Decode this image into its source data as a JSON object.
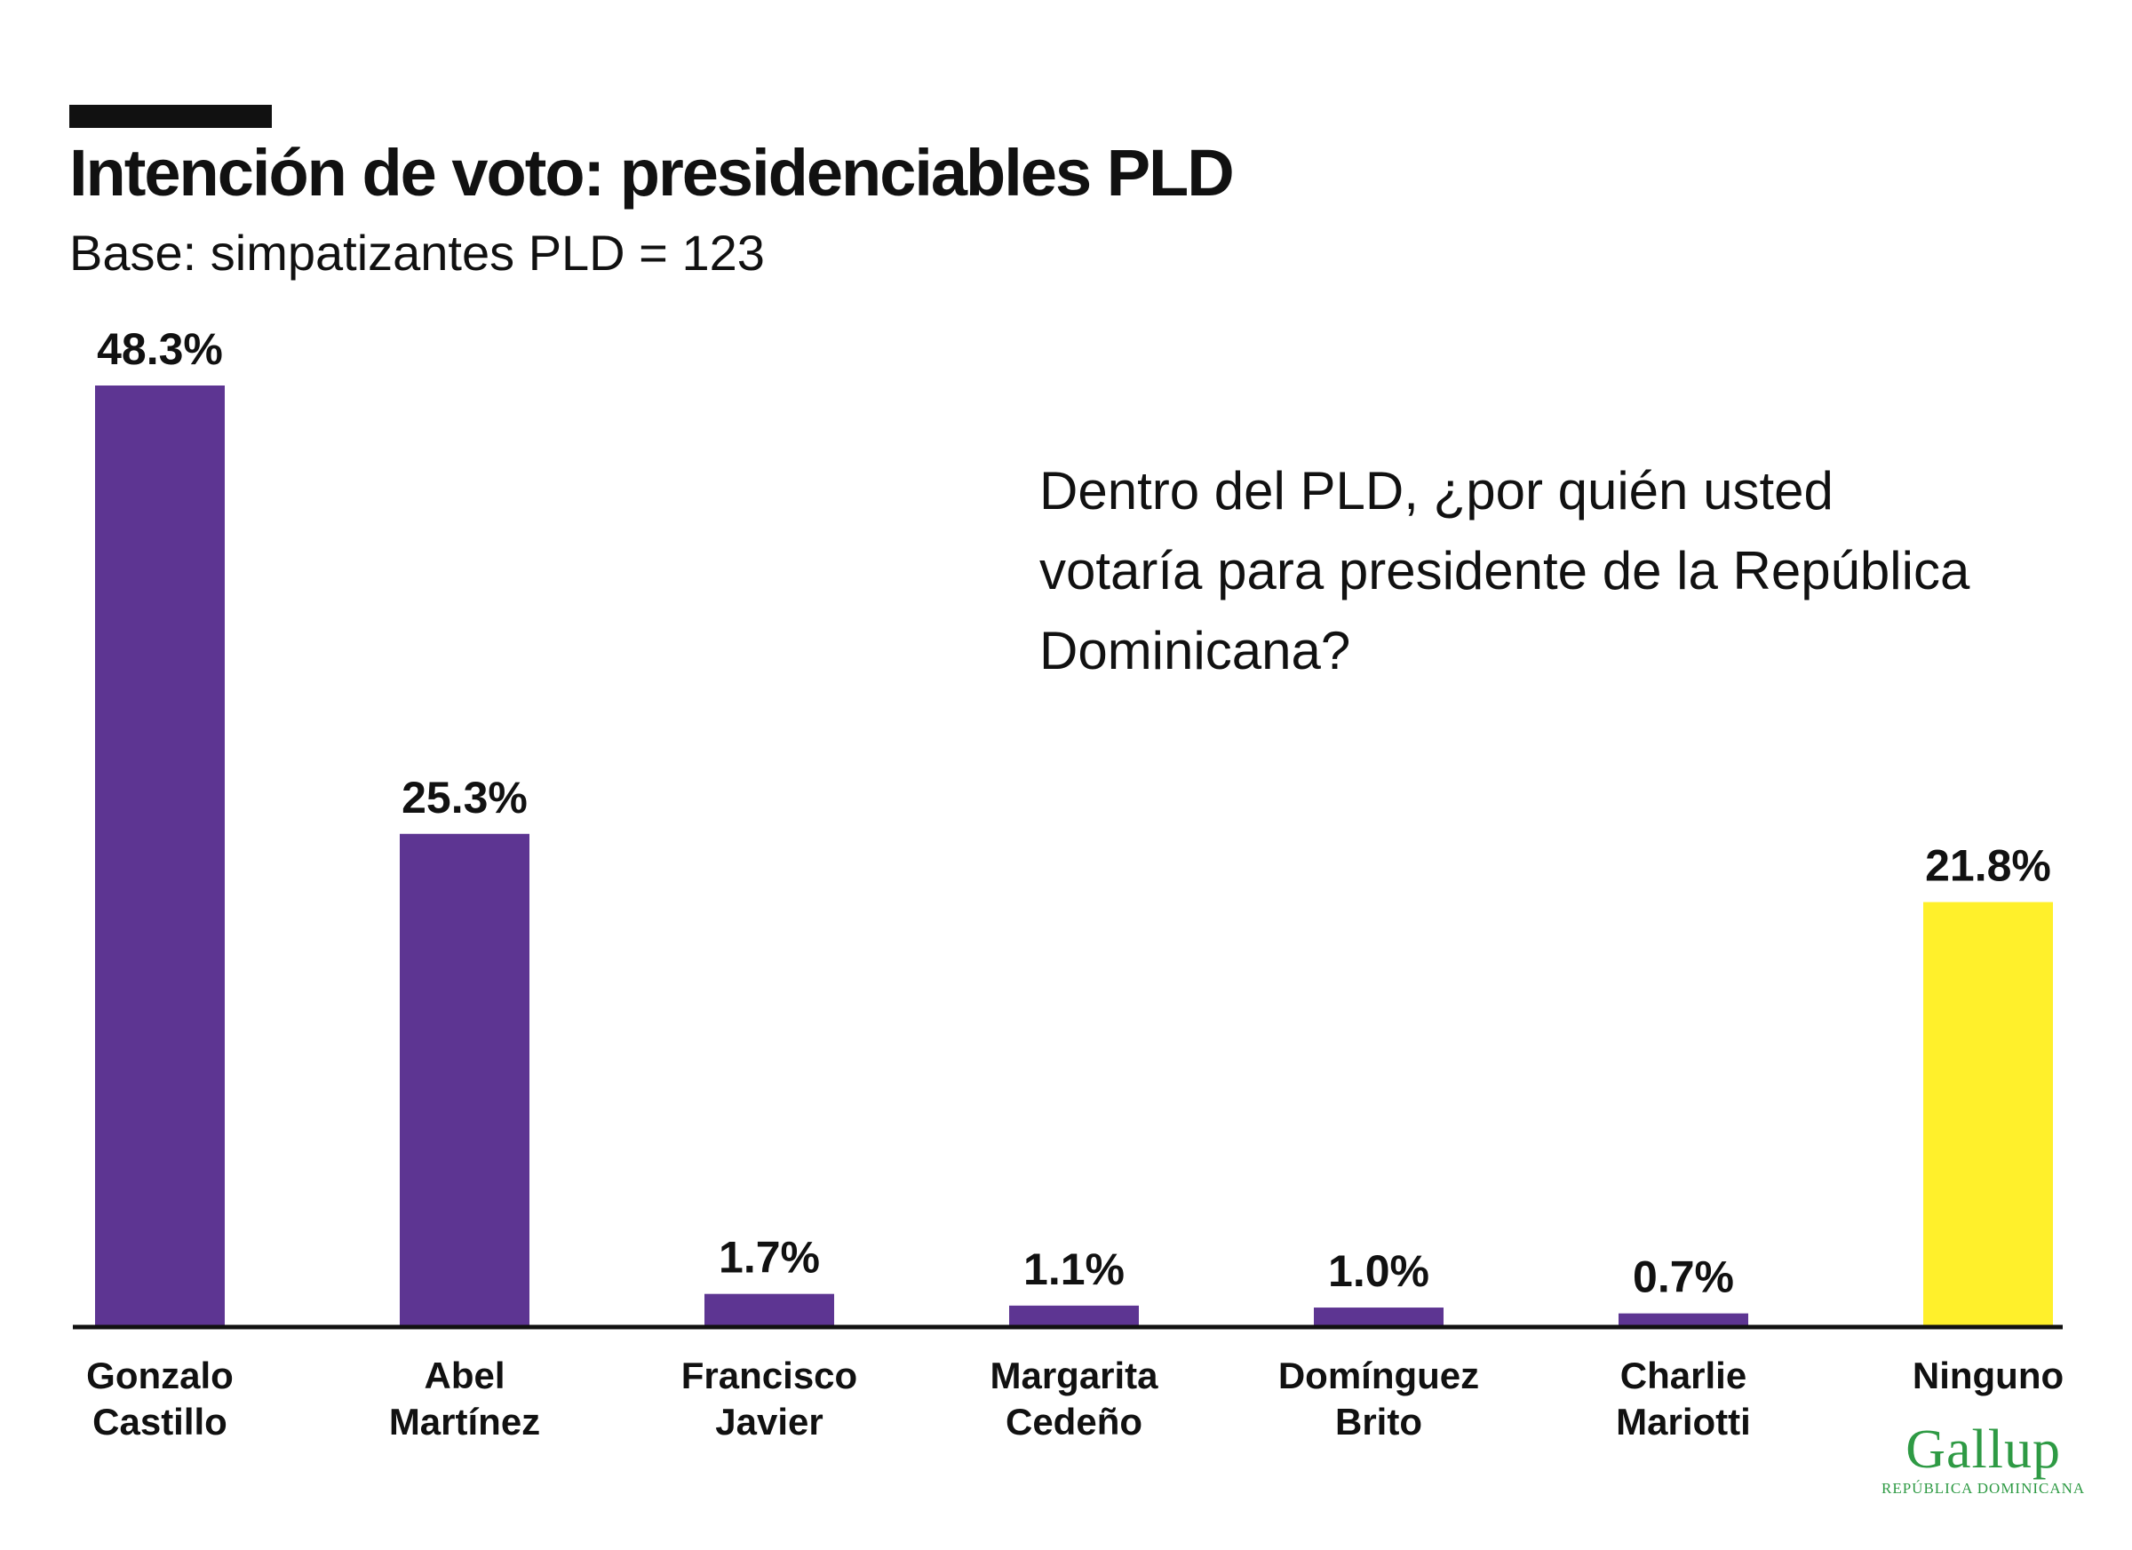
{
  "title": "Intención de voto: presidenciables PLD",
  "subtitle": "Base: simpatizantes PLD = 123",
  "question": "Dentro del PLD, ¿por quién usted votaría para presidente de la República Dominicana?",
  "logo": {
    "main": "Gallup",
    "sub": "República Dominicana"
  },
  "colors": {
    "primary_bar": "#5d3592",
    "highlight_bar": "#fff02b",
    "text": "#111111",
    "logo": "#2e9a44"
  },
  "chart_data": {
    "type": "bar",
    "categories": [
      [
        "Gonzalo",
        "Castillo"
      ],
      [
        "Abel",
        "Martínez"
      ],
      [
        "Francisco",
        "Javier"
      ],
      [
        "Margarita",
        "Cedeño"
      ],
      [
        "Domínguez",
        "Brito"
      ],
      [
        "Charlie",
        "Mariotti"
      ],
      [
        "Ninguno"
      ]
    ],
    "values": [
      48.3,
      25.3,
      1.7,
      1.1,
      1.0,
      0.7,
      21.8
    ],
    "value_labels": [
      "48.3%",
      "25.3%",
      "1.7%",
      "1.1%",
      "1.0%",
      "0.7%",
      "21.8%"
    ],
    "highlight_index": 6,
    "ylim": [
      0,
      48.3
    ],
    "grid": false,
    "legend": "none",
    "xlabel": "",
    "ylabel": ""
  }
}
